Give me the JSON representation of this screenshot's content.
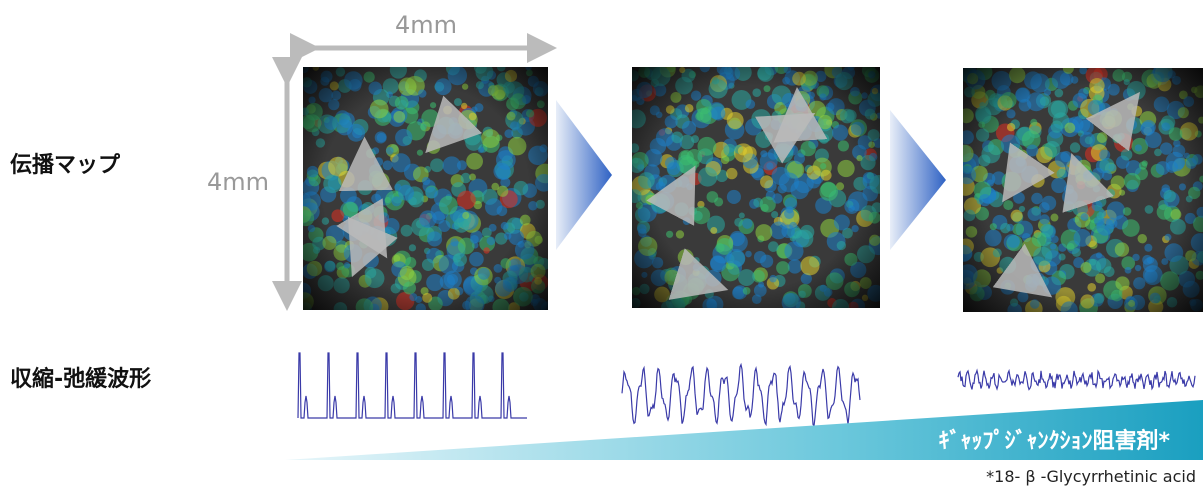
{
  "labels": {
    "width_top": "4mm",
    "height_left": "4mm",
    "propagation_map": "伝播マップ",
    "waveform": "収縮-弛緩波形",
    "inhibitor": "ｷﾞｬｯﾌﾟｼﾞｬﾝｸｼｮﾝ阻害剤*",
    "footnote": "*18- β -Glycyrrhetinic acid"
  }
}
